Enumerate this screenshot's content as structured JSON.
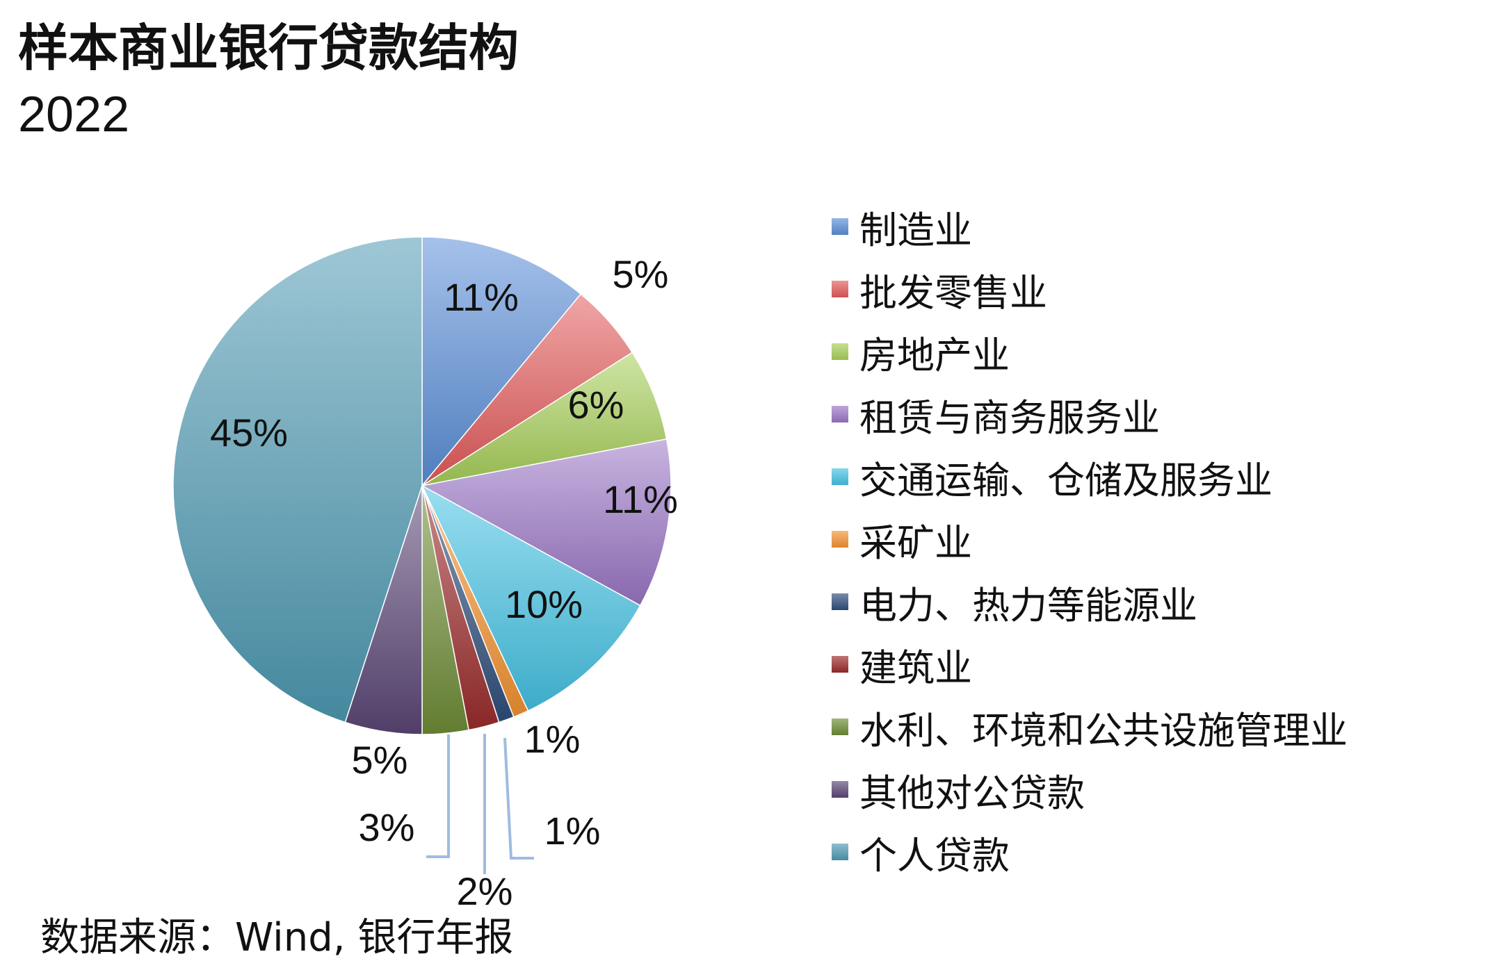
{
  "chart_data": {
    "type": "pie",
    "title": "样本商业银行贷款结构",
    "subtitle": "2022",
    "source": "数据来源：Wind, 银行年报",
    "unit": "%",
    "legend_position": "right",
    "slices": [
      {
        "name": "制造业",
        "value": 11,
        "label": "11%",
        "color": "#5b8fd8"
      },
      {
        "name": "批发零售业",
        "value": 5,
        "label": "5%",
        "color": "#e45b5b"
      },
      {
        "name": "房地产业",
        "value": 6,
        "label": "6%",
        "color": "#a8d05a"
      },
      {
        "name": "租赁与商务服务业",
        "value": 11,
        "label": "11%",
        "color": "#9b76c6"
      },
      {
        "name": "交通运输、仓储及服务业",
        "value": 10,
        "label": "10%",
        "color": "#45c3e4"
      },
      {
        "name": "采矿业",
        "value": 1,
        "label": "1%",
        "color": "#f49432"
      },
      {
        "name": "电力、热力等能源业",
        "value": 1,
        "label": "1%",
        "color": "#2f4e7c"
      },
      {
        "name": "建筑业",
        "value": 2,
        "label": "2%",
        "color": "#9c2b2b"
      },
      {
        "name": "水利、环境和公共设施管理业",
        "value": 3,
        "label": "3%",
        "color": "#6f8d36"
      },
      {
        "name": "其他对公贷款",
        "value": 5,
        "label": "5%",
        "color": "#5b4676"
      },
      {
        "name": "个人贷款",
        "value": 45,
        "label": "45%",
        "color": "#4e9ab3"
      }
    ]
  }
}
